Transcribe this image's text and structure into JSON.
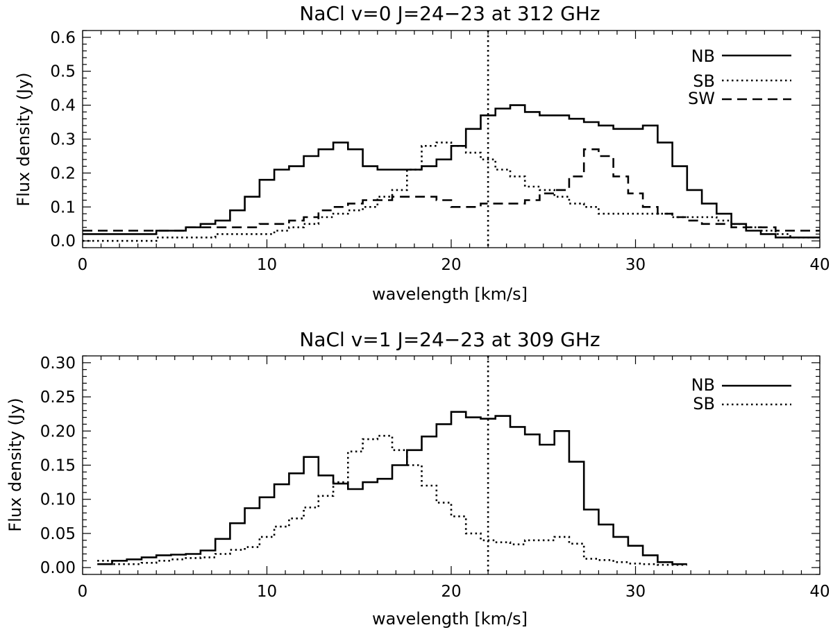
{
  "chart_data": [
    {
      "type": "line",
      "step": true,
      "title": "NaCl v=0 J=24−23 at 312 GHz",
      "xlabel": "wavelength [km/s]",
      "ylabel": "Flux density (Jy)",
      "xlim": [
        0,
        40
      ],
      "ylim": [
        -0.02,
        0.62
      ],
      "xticks": [
        0,
        10,
        20,
        30,
        40
      ],
      "xtick_labels": [
        "0",
        "10",
        "20",
        "30",
        "40"
      ],
      "yticks": [
        0.0,
        0.1,
        0.2,
        0.3,
        0.4,
        0.5,
        0.6
      ],
      "ytick_labels": [
        "0.0",
        "0.1",
        "0.2",
        "0.3",
        "0.4",
        "0.5",
        "0.6"
      ],
      "x_minor_step": 1,
      "y_minor_step": 0.02,
      "vline": 22,
      "legend_position": "top-right",
      "bin_start": 0,
      "bin_width": 0.8,
      "series": [
        {
          "name": "NB",
          "style": "solid",
          "values": [
            0.02,
            0.02,
            0.02,
            0.02,
            0.02,
            0.03,
            0.03,
            0.04,
            0.05,
            0.06,
            0.09,
            0.13,
            0.18,
            0.21,
            0.22,
            0.25,
            0.27,
            0.29,
            0.27,
            0.22,
            0.21,
            0.21,
            0.21,
            0.22,
            0.24,
            0.28,
            0.33,
            0.37,
            0.39,
            0.4,
            0.38,
            0.37,
            0.37,
            0.36,
            0.35,
            0.34,
            0.33,
            0.33,
            0.34,
            0.29,
            0.22,
            0.15,
            0.11,
            0.08,
            0.05,
            0.03,
            0.02,
            0.01,
            0.01,
            0.01
          ]
        },
        {
          "name": "SB",
          "style": "dotted",
          "values": [
            0.0,
            0.0,
            0.0,
            0.0,
            0.0,
            0.01,
            0.01,
            0.01,
            0.01,
            0.02,
            0.02,
            0.02,
            0.02,
            0.03,
            0.04,
            0.05,
            0.07,
            0.08,
            0.09,
            0.1,
            0.13,
            0.15,
            0.21,
            0.28,
            0.29,
            0.28,
            0.26,
            0.24,
            0.21,
            0.19,
            0.16,
            0.15,
            0.13,
            0.11,
            0.1,
            0.08,
            0.08,
            0.08,
            0.08,
            0.08,
            0.07,
            0.07,
            0.07,
            0.06,
            0.05,
            0.04,
            0.03,
            0.02,
            0.01,
            0.01
          ]
        },
        {
          "name": "SW",
          "style": "dashed",
          "values": [
            0.03,
            0.03,
            0.03,
            0.03,
            0.03,
            0.03,
            0.03,
            0.04,
            0.04,
            0.04,
            0.04,
            0.04,
            0.05,
            0.05,
            0.06,
            0.07,
            0.09,
            0.1,
            0.11,
            0.12,
            0.12,
            0.13,
            0.13,
            0.13,
            0.12,
            0.1,
            0.1,
            0.11,
            0.11,
            0.11,
            0.12,
            0.14,
            0.15,
            0.19,
            0.27,
            0.25,
            0.19,
            0.14,
            0.1,
            0.08,
            0.07,
            0.06,
            0.05,
            0.05,
            0.04,
            0.04,
            0.04,
            0.03,
            0.03,
            0.03
          ]
        }
      ]
    },
    {
      "type": "line",
      "step": true,
      "title": "NaCl v=1 J=24−23 at 309 GHz",
      "xlabel": "wavelength [km/s]",
      "ylabel": "Flux density (Jy)",
      "xlim": [
        0,
        40
      ],
      "ylim": [
        -0.01,
        0.31
      ],
      "xticks": [
        0,
        10,
        20,
        30,
        40
      ],
      "xtick_labels": [
        "0",
        "10",
        "20",
        "30",
        "40"
      ],
      "yticks": [
        0.0,
        0.05,
        0.1,
        0.15,
        0.2,
        0.25,
        0.3
      ],
      "ytick_labels": [
        "0.00",
        "0.05",
        "0.10",
        "0.15",
        "0.20",
        "0.25",
        "0.30"
      ],
      "x_minor_step": 1,
      "y_minor_step": 0.01,
      "vline": 22,
      "legend_position": "top-right",
      "bin_start": 0.8,
      "bin_width": 0.8,
      "series": [
        {
          "name": "NB",
          "style": "solid",
          "values": [
            0.005,
            0.01,
            0.012,
            0.015,
            0.018,
            0.019,
            0.02,
            0.025,
            0.042,
            0.065,
            0.087,
            0.103,
            0.122,
            0.138,
            0.162,
            0.135,
            0.123,
            0.115,
            0.125,
            0.13,
            0.15,
            0.172,
            0.192,
            0.21,
            0.228,
            0.22,
            0.218,
            0.222,
            0.206,
            0.195,
            0.18,
            0.2,
            0.155,
            0.085,
            0.063,
            0.045,
            0.032,
            0.018,
            0.008,
            0.005
          ]
        },
        {
          "name": "SB",
          "style": "dotted",
          "values": [
            0.01,
            0.005,
            0.005,
            0.007,
            0.01,
            0.012,
            0.014,
            0.015,
            0.02,
            0.026,
            0.03,
            0.045,
            0.06,
            0.072,
            0.088,
            0.105,
            0.125,
            0.17,
            0.188,
            0.193,
            0.172,
            0.15,
            0.12,
            0.095,
            0.075,
            0.05,
            0.04,
            0.037,
            0.034,
            0.04,
            0.04,
            0.045,
            0.035,
            0.013,
            0.011,
            0.008,
            0.006,
            0.005,
            0.004,
            0.004
          ]
        }
      ]
    }
  ]
}
